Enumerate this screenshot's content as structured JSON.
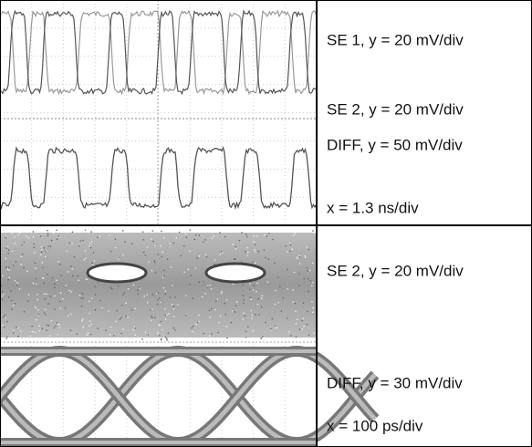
{
  "top_panel": {
    "labels": [
      "SE 1, y = 20 mV/div",
      "SE 2, y = 20 mV/div",
      "DIFF, y = 50 mV/div",
      "x = 1.3 ns/div"
    ]
  },
  "bottom_panel": {
    "labels": [
      "SE 2, y = 20 mV/div",
      "DIFF, y = 30 mV/div",
      "x = 100 ps/div"
    ]
  }
}
